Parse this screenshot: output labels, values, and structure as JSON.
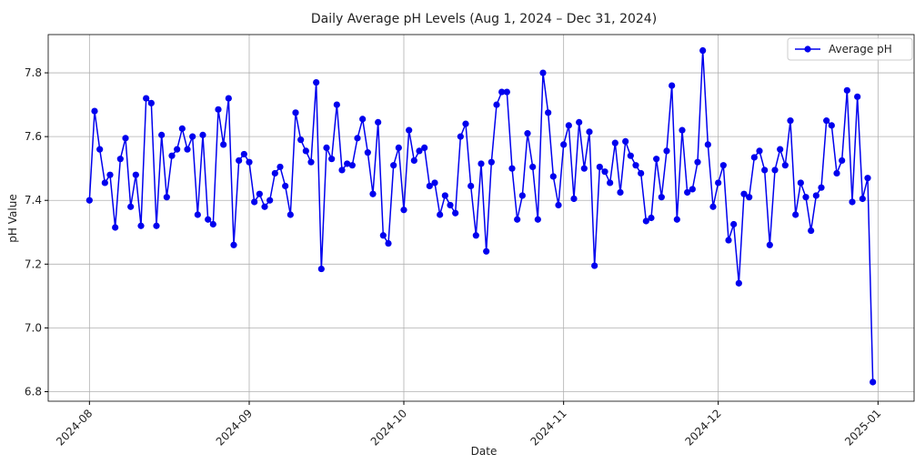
{
  "chart_data": {
    "type": "line",
    "title": "Daily Average pH Levels (Aug 1, 2024 – Dec 31, 2024)",
    "x_label": "Date",
    "y_label": "pH Value",
    "x": [
      "2024-08-01",
      "2024-08-02",
      "2024-08-03",
      "2024-08-04",
      "2024-08-05",
      "2024-08-06",
      "2024-08-07",
      "2024-08-08",
      "2024-08-09",
      "2024-08-10",
      "2024-08-11",
      "2024-08-12",
      "2024-08-13",
      "2024-08-14",
      "2024-08-15",
      "2024-08-16",
      "2024-08-17",
      "2024-08-18",
      "2024-08-19",
      "2024-08-20",
      "2024-08-21",
      "2024-08-22",
      "2024-08-23",
      "2024-08-24",
      "2024-08-25",
      "2024-08-26",
      "2024-08-27",
      "2024-08-28",
      "2024-08-29",
      "2024-08-30",
      "2024-08-31",
      "2024-09-01",
      "2024-09-02",
      "2024-09-03",
      "2024-09-04",
      "2024-09-05",
      "2024-09-06",
      "2024-09-07",
      "2024-09-08",
      "2024-09-09",
      "2024-09-10",
      "2024-09-11",
      "2024-09-12",
      "2024-09-13",
      "2024-09-14",
      "2024-09-15",
      "2024-09-16",
      "2024-09-17",
      "2024-09-18",
      "2024-09-19",
      "2024-09-20",
      "2024-09-21",
      "2024-09-22",
      "2024-09-23",
      "2024-09-24",
      "2024-09-25",
      "2024-09-26",
      "2024-09-27",
      "2024-09-28",
      "2024-09-29",
      "2024-09-30",
      "2024-10-01",
      "2024-10-02",
      "2024-10-03",
      "2024-10-04",
      "2024-10-05",
      "2024-10-06",
      "2024-10-07",
      "2024-10-08",
      "2024-10-09",
      "2024-10-10",
      "2024-10-11",
      "2024-10-12",
      "2024-10-13",
      "2024-10-14",
      "2024-10-15",
      "2024-10-16",
      "2024-10-17",
      "2024-10-18",
      "2024-10-19",
      "2024-10-20",
      "2024-10-21",
      "2024-10-22",
      "2024-10-23",
      "2024-10-24",
      "2024-10-25",
      "2024-10-26",
      "2024-10-27",
      "2024-10-28",
      "2024-10-29",
      "2024-10-30",
      "2024-10-31",
      "2024-11-01",
      "2024-11-02",
      "2024-11-03",
      "2024-11-04",
      "2024-11-05",
      "2024-11-06",
      "2024-11-07",
      "2024-11-08",
      "2024-11-09",
      "2024-11-10",
      "2024-11-11",
      "2024-11-12",
      "2024-11-13",
      "2024-11-14",
      "2024-11-15",
      "2024-11-16",
      "2024-11-17",
      "2024-11-18",
      "2024-11-19",
      "2024-11-20",
      "2024-11-21",
      "2024-11-22",
      "2024-11-23",
      "2024-11-24",
      "2024-11-25",
      "2024-11-26",
      "2024-11-27",
      "2024-11-28",
      "2024-11-29",
      "2024-11-30",
      "2024-12-01",
      "2024-12-02",
      "2024-12-03",
      "2024-12-04",
      "2024-12-05",
      "2024-12-06",
      "2024-12-07",
      "2024-12-08",
      "2024-12-09",
      "2024-12-10",
      "2024-12-11",
      "2024-12-12",
      "2024-12-13",
      "2024-12-14",
      "2024-12-15",
      "2024-12-16",
      "2024-12-17",
      "2024-12-18",
      "2024-12-19",
      "2024-12-20",
      "2024-12-21",
      "2024-12-22",
      "2024-12-23",
      "2024-12-24",
      "2024-12-25",
      "2024-12-26",
      "2024-12-27",
      "2024-12-28",
      "2024-12-29",
      "2024-12-30",
      "2024-12-31"
    ],
    "series": [
      {
        "name": "Average pH",
        "color": "#0000ee",
        "values": [
          7.4,
          7.68,
          7.56,
          7.455,
          7.48,
          7.315,
          7.53,
          7.595,
          7.38,
          7.48,
          7.32,
          7.72,
          7.705,
          7.32,
          7.605,
          7.41,
          7.54,
          7.56,
          7.625,
          7.56,
          7.6,
          7.355,
          7.605,
          7.34,
          7.325,
          7.685,
          7.575,
          7.72,
          7.26,
          7.525,
          7.545,
          7.52,
          7.395,
          7.42,
          7.38,
          7.4,
          7.485,
          7.505,
          7.445,
          7.355,
          7.675,
          7.59,
          7.555,
          7.52,
          7.77,
          7.185,
          7.565,
          7.53,
          7.7,
          7.495,
          7.515,
          7.51,
          7.595,
          7.655,
          7.55,
          7.42,
          7.645,
          7.29,
          7.265,
          7.51,
          7.565,
          7.37,
          7.62,
          7.525,
          7.555,
          7.565,
          7.445,
          7.455,
          7.355,
          7.415,
          7.385,
          7.36,
          7.6,
          7.64,
          7.445,
          7.29,
          7.515,
          7.24,
          7.52,
          7.7,
          7.74,
          7.74,
          7.5,
          7.34,
          7.415,
          7.61,
          7.505,
          7.34,
          7.8,
          7.675,
          7.475,
          7.385,
          7.575,
          7.635,
          7.405,
          7.645,
          7.5,
          7.615,
          7.195,
          7.505,
          7.49,
          7.455,
          7.58,
          7.425,
          7.585,
          7.54,
          7.51,
          7.485,
          7.335,
          7.345,
          7.53,
          7.41,
          7.555,
          7.76,
          7.34,
          7.62,
          7.425,
          7.435,
          7.52,
          7.87,
          7.575,
          7.38,
          7.455,
          7.51,
          7.275,
          7.325,
          7.14,
          7.42,
          7.41,
          7.535,
          7.555,
          7.495,
          7.26,
          7.495,
          7.56,
          7.51,
          7.65,
          7.355,
          7.455,
          7.41,
          7.305,
          7.415,
          7.44,
          7.65,
          7.635,
          7.485,
          7.525,
          7.745,
          7.395,
          7.725,
          7.405,
          7.47,
          6.83
        ]
      }
    ],
    "xlim": [
      "2024-07-24",
      "2025-01-08"
    ],
    "xticks": [
      {
        "value": "2024-08-01",
        "label": "2024-08"
      },
      {
        "value": "2024-09-01",
        "label": "2024-09"
      },
      {
        "value": "2024-10-01",
        "label": "2024-10"
      },
      {
        "value": "2024-11-01",
        "label": "2024-11"
      },
      {
        "value": "2024-12-01",
        "label": "2024-12"
      },
      {
        "value": "2025-01-01",
        "label": "2025-01"
      }
    ],
    "ylim": [
      6.77,
      7.92
    ],
    "yticks": [
      {
        "value": 6.8,
        "label": "6.8"
      },
      {
        "value": 7.0,
        "label": "7.0"
      },
      {
        "value": 7.2,
        "label": "7.2"
      },
      {
        "value": 7.4,
        "label": "7.4"
      },
      {
        "value": 7.6,
        "label": "7.6"
      },
      {
        "value": 7.8,
        "label": "7.8"
      }
    ],
    "grid": true,
    "legend": "upper right"
  }
}
